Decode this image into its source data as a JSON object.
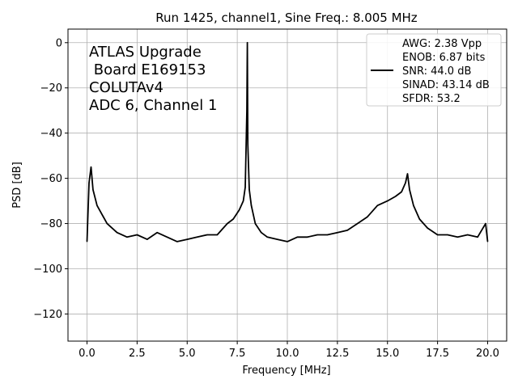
{
  "chart_data": {
    "type": "line",
    "title": "Run 1425, channel1, Sine Freq.: 8.005 MHz",
    "xlabel": "Frequency [MHz]",
    "ylabel": "PSD [dB]",
    "xlim": [
      -0.95,
      20.95
    ],
    "ylim": [
      -132,
      6
    ],
    "xticks": [
      0.0,
      2.5,
      5.0,
      7.5,
      10.0,
      12.5,
      15.0,
      17.5,
      20.0
    ],
    "xtick_labels": [
      "0.0",
      "2.5",
      "5.0",
      "7.5",
      "10.0",
      "12.5",
      "15.0",
      "17.5",
      "20.0"
    ],
    "yticks": [
      0,
      -20,
      -40,
      -60,
      -80,
      -100,
      -120
    ],
    "ytick_labels": [
      "0",
      "−20",
      "−40",
      "−60",
      "−80",
      "−100",
      "−120"
    ],
    "grid": true,
    "legend_position": "top-right",
    "annotation": [
      "ATLAS Upgrade",
      " Board E169153",
      "COLUTAv4",
      "ADC 6, Channel 1"
    ],
    "legend_lines": [
      "AWG: 2.38 Vpp",
      "ENOB: 6.87 bits",
      "SNR: 44.0 dB",
      "SINAD: 43.14 dB",
      "SFDR: 53.2"
    ],
    "series_color": "#000000",
    "series": [
      {
        "x": [
          0.0,
          0.1,
          0.2,
          0.3,
          0.5,
          1.0,
          1.5,
          2.0,
          2.5,
          3.0,
          3.5,
          4.0,
          4.5,
          5.0,
          5.5,
          6.0,
          6.5,
          7.0,
          7.3,
          7.6,
          7.8,
          7.9,
          7.98,
          8.005,
          8.03,
          8.1,
          8.2,
          8.4,
          8.7,
          9.0,
          9.5,
          10.0,
          10.5,
          11.0,
          11.5,
          12.0,
          12.5,
          13.0,
          13.5,
          14.0,
          14.5,
          15.0,
          15.4,
          15.7,
          15.9,
          16.0,
          16.1,
          16.3,
          16.6,
          17.0,
          17.5,
          18.0,
          18.5,
          19.0,
          19.5,
          19.9,
          20.0
        ],
        "y": [
          -88,
          -62,
          -55,
          -65,
          -72,
          -80,
          -84,
          -86,
          -85,
          -87,
          -84,
          -86,
          -88,
          -87,
          -86,
          -85,
          -85,
          -80,
          -78,
          -74,
          -70,
          -64,
          -30,
          0,
          -45,
          -65,
          -72,
          -80,
          -84,
          -86,
          -87,
          -88,
          -86,
          -86,
          -85,
          -85,
          -84,
          -83,
          -80,
          -77,
          -72,
          -70,
          -68,
          -66,
          -62,
          -58,
          -65,
          -72,
          -78,
          -82,
          -85,
          -85,
          -86,
          -85,
          -86,
          -80,
          -88
        ]
      }
    ]
  }
}
